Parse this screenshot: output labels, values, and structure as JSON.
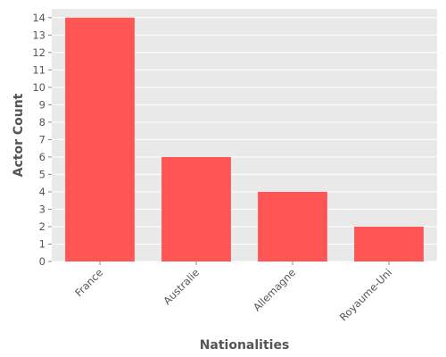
{
  "chart_data": {
    "type": "bar",
    "title": "",
    "xlabel": "Nationalities",
    "ylabel": "Actor Count",
    "categories": [
      "France",
      "Australie",
      "Allemagne",
      "Royaume-Uni"
    ],
    "values": [
      14,
      6,
      4,
      2
    ],
    "ylim": [
      0,
      14.5
    ],
    "yticks": [
      "0",
      "1",
      "2",
      "3",
      "4",
      "5",
      "6",
      "7",
      "8",
      "9",
      "10",
      "11",
      "12",
      "13",
      "14"
    ],
    "grid": true,
    "legend": "none",
    "colors": {
      "bar": "#ff5555",
      "plot_background": "#e9e9e9",
      "grid": "#ffffff",
      "text": "#555555"
    }
  }
}
